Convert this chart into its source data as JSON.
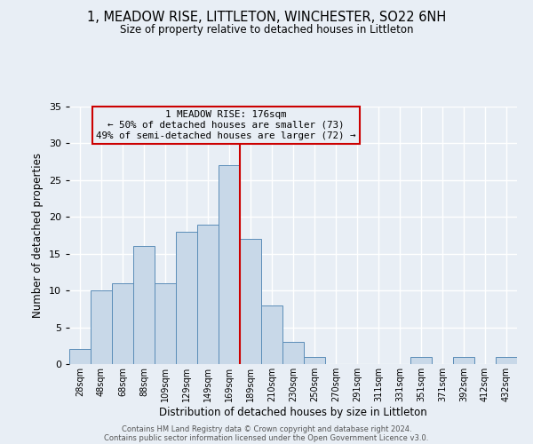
{
  "title": "1, MEADOW RISE, LITTLETON, WINCHESTER, SO22 6NH",
  "subtitle": "Size of property relative to detached houses in Littleton",
  "xlabel": "Distribution of detached houses by size in Littleton",
  "ylabel": "Number of detached properties",
  "bin_labels": [
    "28sqm",
    "48sqm",
    "68sqm",
    "88sqm",
    "109sqm",
    "129sqm",
    "149sqm",
    "169sqm",
    "189sqm",
    "210sqm",
    "230sqm",
    "250sqm",
    "270sqm",
    "291sqm",
    "311sqm",
    "331sqm",
    "351sqm",
    "371sqm",
    "392sqm",
    "412sqm",
    "432sqm"
  ],
  "bar_heights": [
    2,
    10,
    11,
    16,
    11,
    18,
    19,
    27,
    17,
    8,
    3,
    1,
    0,
    0,
    0,
    0,
    1,
    0,
    1,
    0,
    1
  ],
  "bar_color": "#c8d8e8",
  "bar_edge_color": "#5b8db8",
  "ylim": [
    0,
    35
  ],
  "yticks": [
    0,
    5,
    10,
    15,
    20,
    25,
    30,
    35
  ],
  "vline_x": 7.5,
  "vline_color": "#cc0000",
  "annotation_title": "1 MEADOW RISE: 176sqm",
  "annotation_line1": "← 50% of detached houses are smaller (73)",
  "annotation_line2": "49% of semi-detached houses are larger (72) →",
  "annotation_box_color": "#cc0000",
  "background_color": "#e8eef5",
  "grid_color": "#ffffff",
  "footer_line1": "Contains HM Land Registry data © Crown copyright and database right 2024.",
  "footer_line2": "Contains public sector information licensed under the Open Government Licence v3.0."
}
